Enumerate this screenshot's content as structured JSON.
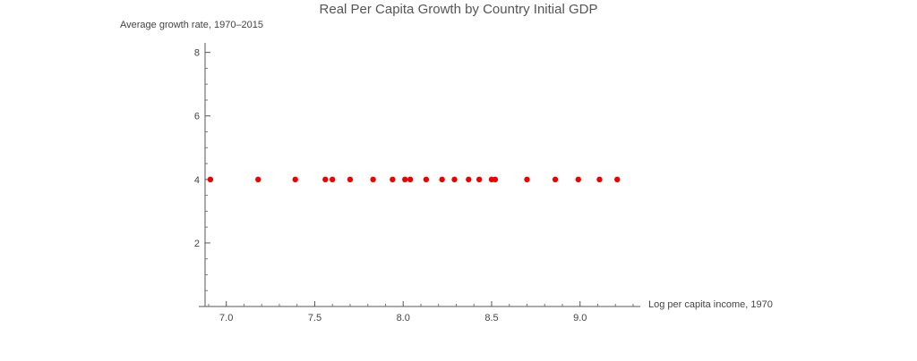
{
  "chart_data": {
    "type": "scatter",
    "title": "Real Per Capita Growth by Country Initial GDP",
    "xlabel": "Log per capita income, 1970",
    "ylabel": "Average growth rate, 1970–2015",
    "xlim": [
      6.88,
      9.3
    ],
    "ylim": [
      0,
      8.3
    ],
    "xticks": [
      "7.0",
      "7.5",
      "8.0",
      "8.5",
      "9.0"
    ],
    "yticks": [
      "2",
      "4",
      "6",
      "8"
    ],
    "grid": false,
    "legend": "none",
    "marker_color": "#ee0000",
    "series": [
      {
        "x": [
          6.91,
          7.18,
          7.39,
          7.56,
          7.6,
          7.7,
          7.83,
          7.94,
          8.01,
          8.04,
          8.13,
          8.22,
          8.29,
          8.37,
          8.43,
          8.5,
          8.52,
          8.7,
          8.86,
          8.99,
          9.11,
          9.21
        ],
        "y": [
          4,
          4,
          4,
          4,
          4,
          4,
          4,
          4,
          4,
          4,
          4,
          4,
          4,
          4,
          4,
          4,
          4,
          4,
          4,
          4,
          4,
          4
        ]
      }
    ]
  }
}
